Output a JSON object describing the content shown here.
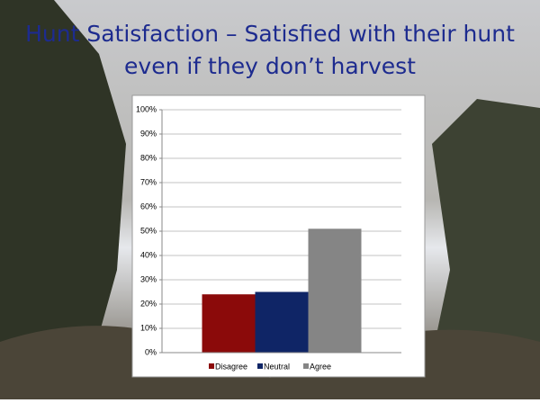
{
  "chart_data": {
    "type": "bar",
    "title": "Hunt Satisfaction – Satisfied with their hunt even if they don’t harvest",
    "categories": [
      null
    ],
    "series": [
      {
        "name": "Disagree",
        "color": "#8b0a0a",
        "values": [
          24
        ]
      },
      {
        "name": "Neutral",
        "color": "#0f2566",
        "values": [
          25
        ]
      },
      {
        "name": "Agree",
        "color": "#858585",
        "values": [
          51
        ]
      }
    ],
    "ylim": [
      0,
      100
    ],
    "yticks": [
      {
        "value": 0,
        "label": "0%"
      },
      {
        "value": 10,
        "label": "10%"
      },
      {
        "value": 20,
        "label": "20%"
      },
      {
        "value": 30,
        "label": "30%"
      },
      {
        "value": 40,
        "label": "40%"
      },
      {
        "value": 50,
        "label": "50%"
      },
      {
        "value": 60,
        "label": "60%"
      },
      {
        "value": 70,
        "label": "70%"
      },
      {
        "value": 80,
        "label": "80%"
      },
      {
        "value": 90,
        "label": "90%"
      },
      {
        "value": 100,
        "label": "100%"
      }
    ],
    "grid": true,
    "legend": "bottom"
  }
}
